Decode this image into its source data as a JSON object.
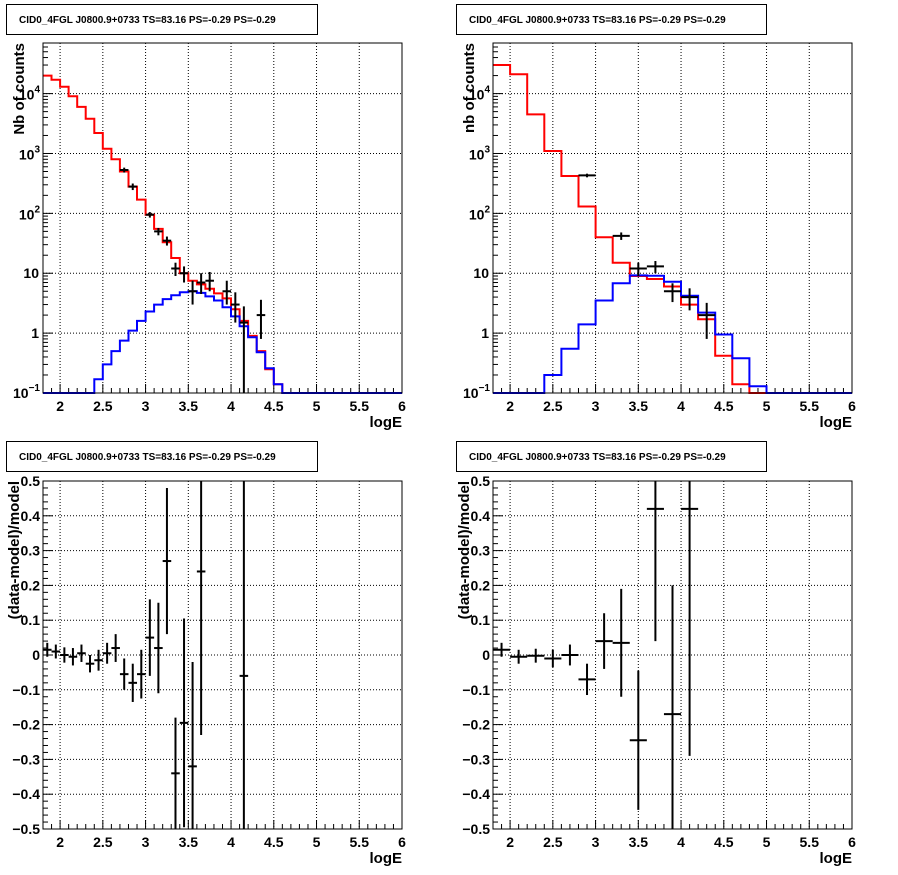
{
  "chart_data": [
    {
      "type": "line",
      "scale_y": "log",
      "title": "CID0_4FGL J0800.9+0733 TS=83.16 PS=-0.29 PS=-0.29",
      "xlabel": "logE",
      "ylabel": "Nb of counts",
      "xlim": [
        1.8,
        6.0
      ],
      "ylim": [
        0.1,
        70000
      ],
      "x_ticks": [
        "2",
        "2.5",
        "3",
        "3.5",
        "4",
        "4.5",
        "5",
        "5.5",
        "6"
      ],
      "y_ticks": [
        "10^-1",
        "1",
        "10",
        "10^2",
        "10^3",
        "10^4"
      ],
      "grid": true,
      "bin_width": 0.1,
      "series": [
        {
          "color": "#ff0000",
          "style": "histogram",
          "x": [
            1.85,
            1.95,
            2.05,
            2.15,
            2.25,
            2.35,
            2.45,
            2.55,
            2.65,
            2.75,
            2.85,
            2.95,
            3.05,
            3.15,
            3.25,
            3.35,
            3.45,
            3.55,
            3.65,
            3.75,
            3.85,
            3.95,
            4.05,
            4.15,
            4.25,
            4.35,
            4.45,
            4.55,
            4.65,
            4.75,
            4.85,
            4.95,
            5.05,
            5.15,
            5.25,
            5.35,
            5.45,
            5.55,
            5.65,
            5.75,
            5.85,
            5.95
          ],
          "values": [
            20000,
            17000,
            13000,
            9000,
            6000,
            3800,
            2200,
            1200,
            800,
            500,
            280,
            170,
            95,
            55,
            33,
            18,
            10,
            7.5,
            6.5,
            5.5,
            4.6,
            3.8,
            2.5,
            1.6,
            0.9,
            0.5,
            0.25,
            0.14,
            0.1,
            0.1,
            0.1,
            0.1,
            0.1,
            0.1,
            0.1,
            0.1,
            0.1,
            0.1,
            0.1,
            0.1,
            0.1,
            0.1
          ]
        },
        {
          "color": "#0000ff",
          "style": "histogram",
          "x": [
            1.85,
            1.95,
            2.05,
            2.15,
            2.25,
            2.35,
            2.45,
            2.55,
            2.65,
            2.75,
            2.85,
            2.95,
            3.05,
            3.15,
            3.25,
            3.35,
            3.45,
            3.55,
            3.65,
            3.75,
            3.85,
            3.95,
            4.05,
            4.15,
            4.25,
            4.35,
            4.45,
            4.55,
            4.65,
            4.75,
            4.85,
            4.95,
            5.05,
            5.15,
            5.25,
            5.35,
            5.45,
            5.55,
            5.65,
            5.75,
            5.85,
            5.95
          ],
          "values": [
            0.1,
            0.1,
            0.1,
            0.1,
            0.1,
            0.1,
            0.17,
            0.3,
            0.5,
            0.75,
            1.1,
            1.6,
            2.3,
            3.0,
            3.7,
            4.3,
            4.8,
            5.0,
            4.7,
            4.1,
            3.5,
            2.7,
            1.9,
            1.3,
            0.85,
            0.48,
            0.26,
            0.14,
            0.1,
            0.1,
            0.1,
            0.1,
            0.1,
            0.1,
            0.1,
            0.1,
            0.1,
            0.1,
            0.1,
            0.1,
            0.1,
            0.1
          ]
        }
      ],
      "points": [
        {
          "x": 2.75,
          "y": 530,
          "lo": 480,
          "hi": 580
        },
        {
          "x": 2.85,
          "y": 280,
          "lo": 245,
          "hi": 315
        },
        {
          "x": 3.05,
          "y": 95,
          "lo": 85,
          "hi": 105
        },
        {
          "x": 3.15,
          "y": 50,
          "lo": 43,
          "hi": 57
        },
        {
          "x": 3.25,
          "y": 35,
          "lo": 29,
          "hi": 41
        },
        {
          "x": 3.35,
          "y": 12,
          "lo": 9,
          "hi": 15
        },
        {
          "x": 3.45,
          "y": 10,
          "lo": 7,
          "hi": 13
        },
        {
          "x": 3.55,
          "y": 5,
          "lo": 3,
          "hi": 7.5
        },
        {
          "x": 3.65,
          "y": 7,
          "lo": 4.5,
          "hi": 10
        },
        {
          "x": 3.75,
          "y": 7.5,
          "lo": 5,
          "hi": 10.5
        },
        {
          "x": 3.95,
          "y": 5,
          "lo": 3,
          "hi": 7.5
        },
        {
          "x": 4.05,
          "y": 3,
          "lo": 1.5,
          "hi": 4.8
        },
        {
          "x": 4.15,
          "y": 1.5,
          "lo": 0.1,
          "hi": 2.8
        },
        {
          "x": 4.35,
          "y": 2,
          "lo": 0.8,
          "hi": 3.6
        }
      ]
    },
    {
      "type": "line",
      "scale_y": "log",
      "title": "CID0_4FGL J0800.9+0733 TS=83.16 PS=-0.29 PS=-0.29",
      "xlabel": "logE",
      "ylabel": "nb of counts",
      "xlim": [
        1.8,
        6.0
      ],
      "ylim": [
        0.1,
        70000
      ],
      "x_ticks": [
        "2",
        "2.5",
        "3",
        "3.5",
        "4",
        "4.5",
        "5",
        "5.5",
        "6"
      ],
      "y_ticks": [
        "10^-1",
        "1",
        "10",
        "10^2",
        "10^3",
        "10^4"
      ],
      "grid": true,
      "bin_width": 0.2,
      "series": [
        {
          "color": "#ff0000",
          "style": "histogram",
          "x": [
            1.9,
            2.1,
            2.3,
            2.5,
            2.7,
            2.9,
            3.1,
            3.3,
            3.5,
            3.7,
            3.9,
            4.1,
            4.3,
            4.5,
            4.7,
            4.9,
            5.1,
            5.3,
            5.5,
            5.7,
            5.9
          ],
          "values": [
            30000,
            21000,
            4500,
            1100,
            420,
            130,
            40,
            15,
            9,
            8,
            6,
            3,
            1.7,
            0.42,
            0.14,
            0.1,
            0.1,
            0.1,
            0.1,
            0.1,
            0.1
          ]
        },
        {
          "color": "#0000ff",
          "style": "histogram",
          "x": [
            1.9,
            2.1,
            2.3,
            2.5,
            2.7,
            2.9,
            3.1,
            3.3,
            3.5,
            3.7,
            3.9,
            4.1,
            4.3,
            4.5,
            4.7,
            4.9,
            5.1,
            5.3,
            5.5,
            5.7,
            5.9
          ],
          "values": [
            0.1,
            0.1,
            0.1,
            0.2,
            0.55,
            1.4,
            3.5,
            6.8,
            9.2,
            9.1,
            7.2,
            4.2,
            2.2,
            0.95,
            0.38,
            0.13,
            0.1,
            0.1,
            0.1,
            0.1,
            0.1
          ]
        }
      ],
      "points": [
        {
          "x": 2.9,
          "y": 430,
          "lo": 400,
          "hi": 460
        },
        {
          "x": 3.3,
          "y": 42,
          "lo": 36,
          "hi": 48
        },
        {
          "x": 3.5,
          "y": 12,
          "lo": 9,
          "hi": 15
        },
        {
          "x": 3.7,
          "y": 13,
          "lo": 10,
          "hi": 16
        },
        {
          "x": 3.9,
          "y": 5,
          "lo": 3.3,
          "hi": 6.8
        },
        {
          "x": 4.1,
          "y": 4,
          "lo": 2.4,
          "hi": 5.6
        },
        {
          "x": 4.3,
          "y": 2,
          "lo": 0.8,
          "hi": 3.2
        }
      ]
    },
    {
      "type": "scatter",
      "title": "CID0_4FGL J0800.9+0733 TS=83.16 PS=-0.29 PS=-0.29",
      "xlabel": "logE",
      "ylabel": "(data-model)/model",
      "xlim": [
        1.8,
        6.0
      ],
      "ylim": [
        -0.5,
        0.5
      ],
      "x_ticks": [
        "2",
        "2.5",
        "3",
        "3.5",
        "4",
        "4.5",
        "5",
        "5.5",
        "6"
      ],
      "y_ticks": [
        "−0.5",
        "−0.4",
        "−0.3",
        "−0.2",
        "−0.1",
        "0",
        "0.1",
        "0.2",
        "0.3",
        "0.4",
        "0.5"
      ],
      "grid": true,
      "bin_width": 0.1,
      "points": [
        {
          "x": 1.85,
          "y": 0.015,
          "err": 0.02
        },
        {
          "x": 1.95,
          "y": 0.01,
          "err": 0.02
        },
        {
          "x": 2.05,
          "y": 0.0,
          "err": 0.022
        },
        {
          "x": 2.15,
          "y": -0.005,
          "err": 0.025
        },
        {
          "x": 2.25,
          "y": 0.005,
          "err": 0.025
        },
        {
          "x": 2.35,
          "y": -0.025,
          "err": 0.025
        },
        {
          "x": 2.45,
          "y": -0.015,
          "err": 0.03
        },
        {
          "x": 2.55,
          "y": 0.005,
          "err": 0.03
        },
        {
          "x": 2.65,
          "y": 0.02,
          "err": 0.04
        },
        {
          "x": 2.75,
          "y": -0.055,
          "err": 0.045
        },
        {
          "x": 2.85,
          "y": -0.08,
          "err": 0.055
        },
        {
          "x": 2.95,
          "y": -0.055,
          "err": 0.07
        },
        {
          "x": 3.05,
          "y": 0.05,
          "err": 0.11
        },
        {
          "x": 3.15,
          "y": 0.02,
          "err": 0.13
        },
        {
          "x": 3.25,
          "y": 0.27,
          "err": 0.21
        },
        {
          "x": 3.35,
          "y": -0.34,
          "err": 0.16
        },
        {
          "x": 3.45,
          "y": -0.195,
          "err": 0.3
        },
        {
          "x": 3.55,
          "y": -0.32,
          "err": 0.3
        },
        {
          "x": 3.65,
          "y": 0.24,
          "err": 0.47
        },
        {
          "x": 4.15,
          "y": -0.06,
          "err": 0.9
        }
      ]
    },
    {
      "type": "scatter",
      "title": "CID0_4FGL J0800.9+0733 TS=83.16 PS=-0.29 PS=-0.29",
      "xlabel": "logE",
      "ylabel": "(data-model)/model",
      "xlim": [
        1.8,
        6.0
      ],
      "ylim": [
        -0.5,
        0.5
      ],
      "x_ticks": [
        "2",
        "2.5",
        "3",
        "3.5",
        "4",
        "4.5",
        "5",
        "5.5",
        "6"
      ],
      "y_ticks": [
        "−0.5",
        "−0.4",
        "−0.3",
        "−0.2",
        "−0.1",
        "0",
        "0.1",
        "0.2",
        "0.3",
        "0.4",
        "0.5"
      ],
      "grid": true,
      "bin_width": 0.2,
      "points": [
        {
          "x": 1.9,
          "y": 0.015,
          "err": 0.02
        },
        {
          "x": 2.1,
          "y": -0.005,
          "err": 0.02
        },
        {
          "x": 2.3,
          "y": -0.002,
          "err": 0.02
        },
        {
          "x": 2.5,
          "y": -0.01,
          "err": 0.025
        },
        {
          "x": 2.7,
          "y": 0.0,
          "err": 0.03
        },
        {
          "x": 2.9,
          "y": -0.07,
          "err": 0.045
        },
        {
          "x": 3.1,
          "y": 0.04,
          "err": 0.08
        },
        {
          "x": 3.3,
          "y": 0.035,
          "err": 0.155
        },
        {
          "x": 3.5,
          "y": -0.245,
          "err": 0.2
        },
        {
          "x": 3.7,
          "y": 0.42,
          "err": 0.38
        },
        {
          "x": 3.9,
          "y": -0.17,
          "err": 0.37
        },
        {
          "x": 4.1,
          "y": 0.42,
          "err": 0.71
        }
      ]
    }
  ]
}
